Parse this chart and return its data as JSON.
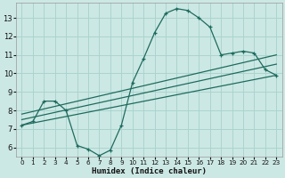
{
  "xlabel": "Humidex (Indice chaleur)",
  "background_color": "#cce8e4",
  "grid_color": "#aad4cf",
  "line_color": "#1e6b5e",
  "xlim": [
    -0.5,
    23.5
  ],
  "ylim": [
    5.5,
    13.8
  ],
  "xticks": [
    0,
    1,
    2,
    3,
    4,
    5,
    6,
    7,
    8,
    9,
    10,
    11,
    12,
    13,
    14,
    15,
    16,
    17,
    18,
    19,
    20,
    21,
    22,
    23
  ],
  "yticks": [
    6,
    7,
    8,
    9,
    10,
    11,
    12,
    13
  ],
  "curve1_x": [
    0,
    1,
    2,
    3,
    4,
    5,
    6,
    7,
    8,
    9,
    10,
    11,
    12,
    13,
    14,
    15,
    16,
    17,
    18,
    19,
    20,
    21,
    22,
    23
  ],
  "curve1_y": [
    7.2,
    7.4,
    8.5,
    8.5,
    8.0,
    6.1,
    5.9,
    5.55,
    5.85,
    7.2,
    9.5,
    10.8,
    12.2,
    13.25,
    13.5,
    13.4,
    13.0,
    12.5,
    11.0,
    11.1,
    11.2,
    11.1,
    10.2,
    9.9
  ],
  "line1_x": [
    0,
    23
  ],
  "line1_y": [
    7.2,
    9.9
  ],
  "line2_x": [
    0,
    23
  ],
  "line2_y": [
    7.8,
    11.0
  ],
  "line3_x": [
    0,
    23
  ],
  "line3_y": [
    7.5,
    10.5
  ]
}
